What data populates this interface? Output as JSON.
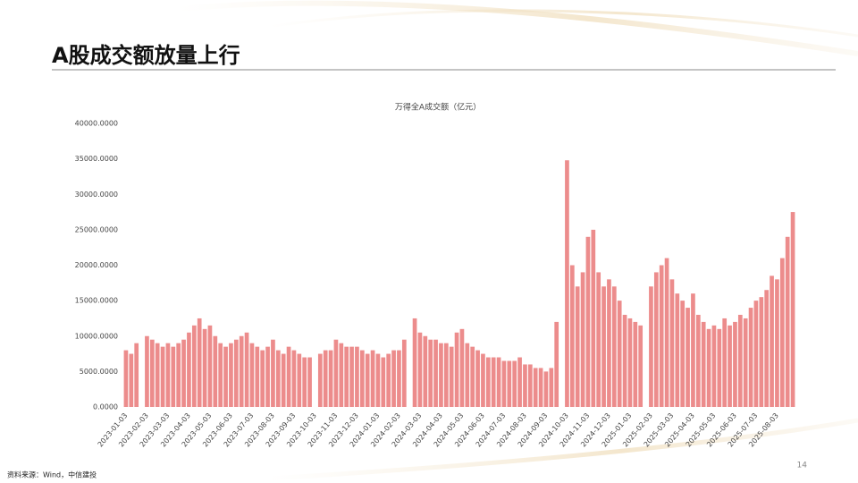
{
  "header": {
    "title": "A股成交额放量上行"
  },
  "chart_data": {
    "type": "bar",
    "title": "万得全A成交额（亿元）",
    "color": "#ec8c8c",
    "grid": false,
    "categories": [
      "2023-01-03",
      null,
      null,
      null,
      "2023-02-03",
      null,
      null,
      null,
      "2023-03-03",
      null,
      null,
      null,
      "2023-04-03",
      null,
      null,
      null,
      "2023-05-03",
      null,
      null,
      null,
      "2023-06-03",
      null,
      null,
      null,
      "2023-07-03",
      null,
      null,
      null,
      "2023-08-03",
      null,
      null,
      null,
      "2023-09-03",
      null,
      null,
      null,
      "2023-10-03",
      null,
      null,
      null,
      "2023-11-03",
      null,
      null,
      null,
      "2023-12-03",
      null,
      null,
      null,
      "2024-01-03",
      null,
      null,
      null,
      "2024-02-03",
      null,
      null,
      null,
      "2024-03-03",
      null,
      null,
      null,
      "2024-04-03",
      null,
      null,
      null,
      "2024-05-03",
      null,
      null,
      null,
      "2024-06-03",
      null,
      null,
      null,
      "2024-07-03",
      null,
      null,
      null,
      "2024-08-03",
      null,
      null,
      null,
      "2024-09-03",
      null,
      null,
      null,
      "2024-10-03",
      null,
      null,
      null,
      "2024-11-03",
      null,
      null,
      null,
      "2024-12-03",
      null,
      null,
      null,
      "2025-01-03",
      null,
      null,
      null,
      "2025-02-03",
      null,
      null,
      null,
      "2025-03-03",
      null,
      null,
      null,
      "2025-04-03",
      null,
      null,
      null,
      "2025-05-03",
      null,
      null,
      null,
      "2025-06-03",
      null,
      null,
      null,
      "2025-07-03",
      null,
      null,
      null,
      "2025-08-03",
      null,
      null,
      null
    ],
    "values": [
      8000,
      7500,
      9000,
      null,
      10000,
      9500,
      9000,
      8500,
      9000,
      8500,
      9000,
      9500,
      10500,
      11500,
      12500,
      11000,
      11500,
      10000,
      9000,
      8500,
      9000,
      9500,
      10000,
      10500,
      9000,
      8500,
      8000,
      8500,
      9500,
      8000,
      7500,
      8500,
      8000,
      7500,
      7000,
      7000,
      null,
      7500,
      8000,
      8000,
      9500,
      9000,
      8500,
      8500,
      8500,
      8000,
      7500,
      8000,
      7500,
      7000,
      7500,
      8000,
      8000,
      9500,
      null,
      12500,
      10500,
      10000,
      9500,
      9500,
      9000,
      9000,
      8500,
      10500,
      11000,
      9000,
      8500,
      8000,
      7500,
      7000,
      7000,
      7000,
      6500,
      6500,
      6500,
      7000,
      6000,
      6000,
      5500,
      5500,
      5000,
      5500,
      12000,
      null,
      34800,
      20000,
      17000,
      19000,
      24000,
      25000,
      19000,
      17000,
      18000,
      17000,
      15000,
      13000,
      12500,
      12000,
      11500,
      null,
      17000,
      19000,
      20000,
      21000,
      18000,
      16000,
      15000,
      14000,
      16000,
      13000,
      12000,
      11000,
      11500,
      11000,
      12500,
      11500,
      12000,
      13000,
      12500,
      14000,
      15000,
      15500,
      16500,
      18500,
      18000,
      21000,
      24000,
      27500
    ],
    "ylim": [
      0,
      40000
    ],
    "yticks": [
      {
        "value": 0,
        "label": "0.0000"
      },
      {
        "value": 5000,
        "label": "5000.0000"
      },
      {
        "value": 10000,
        "label": "10000.0000"
      },
      {
        "value": 15000,
        "label": "15000.0000"
      },
      {
        "value": 20000,
        "label": "20000.0000"
      },
      {
        "value": 25000,
        "label": "25000.0000"
      },
      {
        "value": 30000,
        "label": "30000.0000"
      },
      {
        "value": 35000,
        "label": "35000.0000"
      },
      {
        "value": 40000,
        "label": "40000.0000"
      }
    ]
  },
  "footer": {
    "source": "资料来源：Wind，中信建投",
    "page": "14"
  }
}
